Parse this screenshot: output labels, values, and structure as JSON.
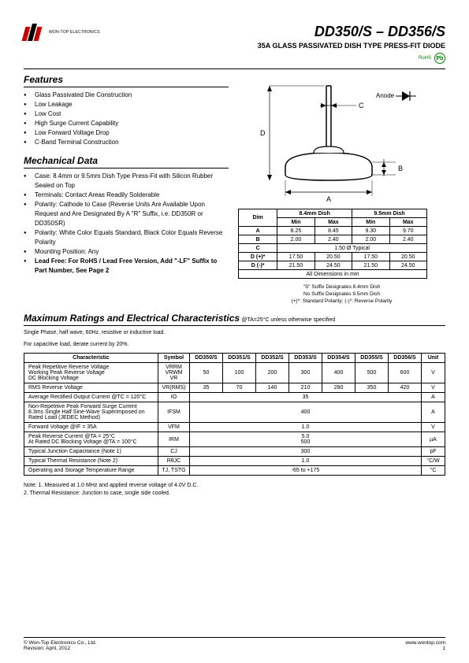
{
  "header": {
    "company": "WON-TOP ELECTRONICS",
    "part_number": "DD350/S – DD356/S",
    "subtitle": "35A GLASS PASSIVATED DISH TYPE PRESS-FIT DIODE",
    "rohs_label": "RoHS",
    "pb_label": "Pb"
  },
  "features": {
    "title": "Features",
    "items": [
      "Glass Passivated Die Construction",
      "Low Leakage",
      "Low Cost",
      "High Surge Current Capability",
      "Low Forward Voltage Drop",
      "C-Band Terminal Construction"
    ]
  },
  "mechanical": {
    "title": "Mechanical Data",
    "items": [
      "Case: 8.4mm or 9.5mm Dish Type Press-Fit with Silicon Rubber Sealed on Top",
      "Terminals: Contact Areas Readily Solderable",
      "Polarity: Cathode to Case (Reverse Units Are Available Upon Request and Are Designated By A \"R\" Suffix, i.e. DD350R or DD350SR)",
      "Polarity: White Color Equals Standard, Black Color Equals Reverse Polarity",
      "Mounting Position: Any"
    ],
    "lead_free": "Lead Free: For RoHS / Lead Free Version, Add \"-LF\" Suffix to Part Number, See Page 2"
  },
  "diagram": {
    "anode_label": "Anode",
    "dim_a": "A",
    "dim_b": "B",
    "dim_c": "C",
    "dim_d": "D"
  },
  "dim_table": {
    "header1_84": "8.4mm Dish",
    "header1_95": "9.5mm Dish",
    "dim_h": "Dim",
    "min_h": "Min",
    "max_h": "Max",
    "rows": [
      {
        "dim": "A",
        "min84": "8.25",
        "max84": "8.45",
        "min95": "9.30",
        "max95": "9.70"
      },
      {
        "dim": "B",
        "min84": "2.00",
        "max84": "2.40",
        "min95": "2.00",
        "max95": "2.40"
      }
    ],
    "row_c": {
      "dim": "C",
      "val": "1.50 Ø Typical"
    },
    "row_d1": {
      "dim": "D (+)*",
      "min84": "17.50",
      "max84": "20.50",
      "min95": "17.50",
      "max95": "20.50"
    },
    "row_d2": {
      "dim": "D (-)*",
      "min84": "21.50",
      "max84": "24.50",
      "min95": "21.50",
      "max95": "24.50"
    },
    "footer": "All Dimensions in mm",
    "notes": [
      "\"S\" Suffix Designates 8.4mm Dish",
      "No Suffix Designates 9.5mm Dish",
      "(+)*: Standard Polarity; (-)*: Reverse Polarity"
    ]
  },
  "ratings": {
    "title": "Maximum Ratings and Electrical Characteristics",
    "condition": " @TA=25°C unless otherwise specified",
    "note1": "Single Phase, half wave, 60Hz, resistive or inductive load.",
    "note2": "For capacitive load, derate current by 20%.",
    "headers": {
      "char": "Characteristic",
      "sym": "Symbol",
      "unit": "Unit",
      "p0": "DD350/S",
      "p1": "DD351/S",
      "p2": "DD352/S",
      "p3": "DD353/S",
      "p4": "DD354/S",
      "p5": "DD355/S",
      "p6": "DD356/S"
    },
    "rows": [
      {
        "label": "Peak Repetitive Reverse Voltage\nWorking Peak Reverse Voltage\nDC Blocking Voltage",
        "sym": "VRRM\nVRWM\nVR",
        "vals": [
          "50",
          "100",
          "200",
          "300",
          "400",
          "500",
          "600"
        ],
        "unit": "V"
      },
      {
        "label": "RMS Reverse Voltage",
        "sym": "VR(RMS)",
        "vals": [
          "35",
          "70",
          "140",
          "210",
          "280",
          "350",
          "420"
        ],
        "unit": "V"
      },
      {
        "label": "Average Rectified Output Current    @TC = 120°C",
        "sym": "IO",
        "span": "35",
        "unit": "A"
      },
      {
        "label": "Non-Repetitive Peak Forward Surge Current\n8.3ms Single Half Sine-Wave Superimposed on\nRated Load (JEDEC Method)",
        "sym": "IFSM",
        "span": "400",
        "unit": "A"
      },
      {
        "label": "Forward Voltage                             @IF = 35A",
        "sym": "VFM",
        "span": "1.0",
        "unit": "V"
      },
      {
        "label": "Peak Reverse Current             @TA = 25°C\nAt Rated DC Blocking Voltage    @TA = 100°C",
        "sym": "IRM",
        "span": "5.0\n500",
        "unit": "µA"
      },
      {
        "label": "Typical Junction Capacitance (Note 1)",
        "sym": "CJ",
        "span": "300",
        "unit": "pF"
      },
      {
        "label": "Typical Thermal Resistance (Note 2)",
        "sym": "RθJC",
        "span": "1.0",
        "unit": "°C/W"
      },
      {
        "label": "Operating and Storage Temperature Range",
        "sym": "TJ, TSTG",
        "span": "-65 to +175",
        "unit": "°C"
      }
    ],
    "footer_notes": "Note:  1. Measured at 1.0 MHz and applied reverse voltage of 4.0V D.C.\n          2. Thermal Resistance: Junction to case, single side cooled."
  },
  "footer": {
    "copyright": "© Won-Top Electronics Co., Ltd.",
    "revision": "Revision: April, 2012",
    "url": "www.wontop.com",
    "page": "1"
  },
  "colors": {
    "red": "#cc0000",
    "black": "#000000",
    "green": "#008000"
  }
}
